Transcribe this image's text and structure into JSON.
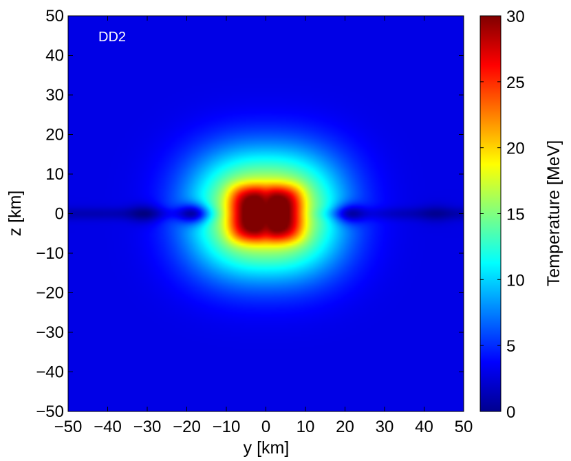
{
  "chart_data": {
    "type": "heatmap",
    "title": "",
    "annotation": "DD2",
    "xlabel": "y [km]",
    "ylabel": "z [km]",
    "xlim": [
      -50,
      50
    ],
    "ylim": [
      -50,
      50
    ],
    "x_ticks": [
      -50,
      -40,
      -30,
      -20,
      -10,
      0,
      10,
      20,
      30,
      40,
      50
    ],
    "y_ticks": [
      -50,
      -40,
      -30,
      -20,
      -10,
      0,
      10,
      20,
      30,
      40,
      50
    ],
    "x_tick_labels": [
      "−50",
      "−40",
      "−30",
      "−20",
      "−10",
      "0",
      "10",
      "20",
      "30",
      "40",
      "50"
    ],
    "y_tick_labels": [
      "−50",
      "−40",
      "−30",
      "−20",
      "−10",
      "0",
      "10",
      "20",
      "30",
      "40",
      "50"
    ],
    "colorbar": {
      "label": "Temperature [MeV]",
      "range": [
        0,
        30
      ],
      "ticks": [
        0,
        5,
        10,
        15,
        20,
        25,
        30
      ],
      "tick_labels": [
        "0",
        "5",
        "10",
        "15",
        "20",
        "25",
        "30"
      ],
      "colormap": "jet"
    },
    "field": {
      "units": "MeV",
      "background_temperature": 3,
      "core": {
        "y_center": 0,
        "z_center": 0,
        "half_width_y": 9,
        "half_height_z": 7,
        "peak_temperature": 30
      },
      "hot_lobes": [
        {
          "y_center": -3,
          "z_center": 4,
          "temperature": 29
        },
        {
          "y_center": 3,
          "z_center": 4,
          "temperature": 28
        },
        {
          "y_center": -3,
          "z_center": -4,
          "temperature": 29
        },
        {
          "y_center": 3,
          "z_center": -4,
          "temperature": 28
        }
      ],
      "cool_spots": [
        {
          "y_center": -31,
          "z_center": 0,
          "temperature": 1.5
        },
        {
          "y_center": -19,
          "z_center": 0,
          "temperature": 2.5
        },
        {
          "y_center": 22,
          "z_center": 0,
          "temperature": 2.5
        },
        {
          "y_center": 43,
          "z_center": 0,
          "temperature": 2
        }
      ]
    }
  }
}
